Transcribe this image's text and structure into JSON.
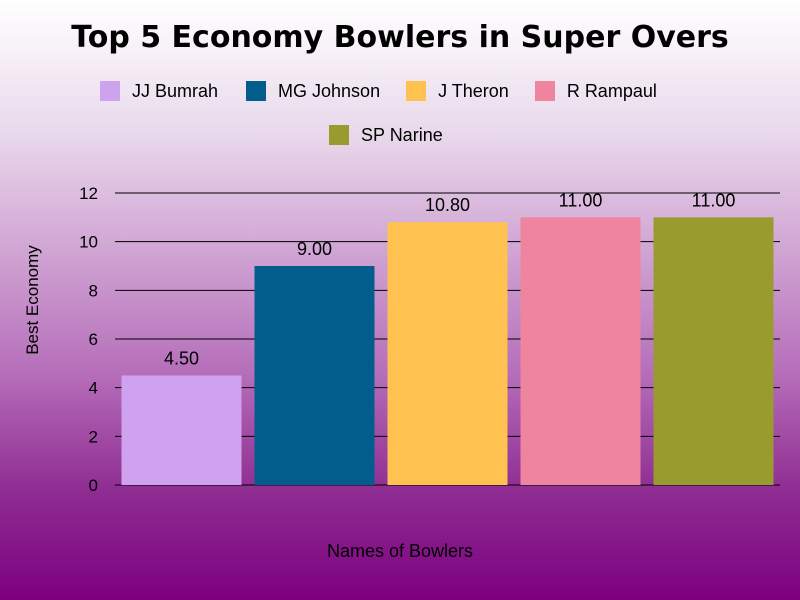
{
  "chart_data": {
    "type": "bar",
    "title": "Top 5 Economy Bowlers in Super Overs",
    "xlabel": "Names of Bowlers",
    "ylabel": "Best Economy",
    "ylim": [
      0,
      12
    ],
    "yticks": [
      "0",
      "2",
      "4",
      "6",
      "8",
      "10",
      "12"
    ],
    "grid": true,
    "legend_position": "top",
    "categories": [
      "JJ Bumrah",
      "MG Johnson",
      "J Theron",
      "R Rampaul",
      "SP Narine"
    ],
    "values": [
      4.5,
      9.0,
      10.8,
      11.0,
      11.0
    ],
    "data_labels": [
      "4.50",
      "9.00",
      "10.80",
      "11.00",
      "11.00"
    ],
    "colors": [
      "#cfa2ef",
      "#025d8c",
      "#ffc250",
      "#ef849e",
      "#9a9b2e"
    ]
  }
}
